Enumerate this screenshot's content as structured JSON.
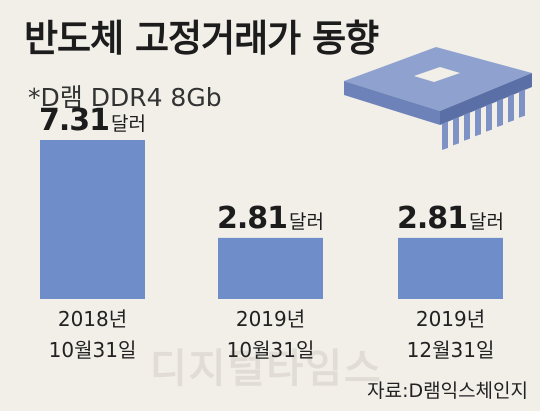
{
  "title": "반도체 고정거래가 동향",
  "subtitle": "*D램 DDR4 8Gb",
  "source": "자료:D램익스체인지",
  "watermark": "디지털타임스",
  "chart_data": {
    "type": "bar",
    "categories": [
      {
        "line1": "2018년",
        "line2": "10월31일"
      },
      {
        "line1": "2019년",
        "line2": "10월31일"
      },
      {
        "line1": "2019년",
        "line2": "12월31일"
      }
    ],
    "values": [
      7.31,
      2.81,
      2.81
    ],
    "value_labels": [
      "7.31",
      "2.81",
      "2.81"
    ],
    "unit": "달러",
    "bar_color": "#6f8dc8",
    "ylim": [
      0,
      8.2
    ]
  },
  "icon": "memory-chip-icon"
}
